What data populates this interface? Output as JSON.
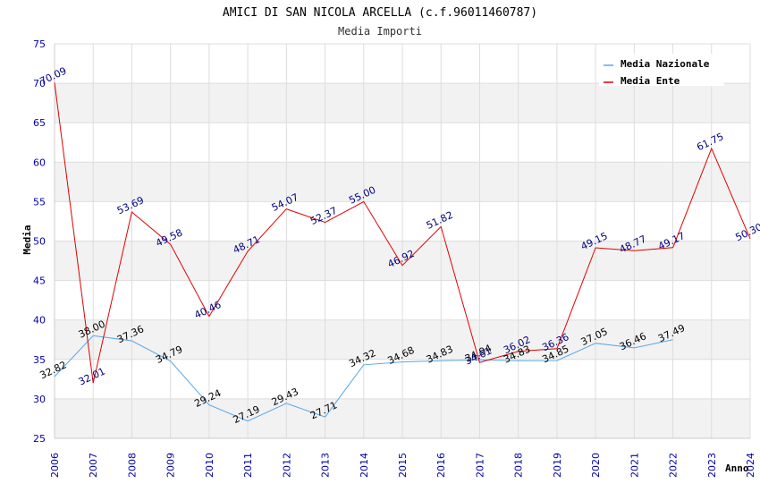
{
  "chart_data": {
    "type": "line",
    "title": "AMICI DI SAN NICOLA ARCELLA (c.f.96011460787)",
    "subtitle": "Media Importi",
    "xlabel": "Anno",
    "ylabel": "Media",
    "ylim": [
      25,
      75
    ],
    "yticks": [
      "25",
      "30",
      "35",
      "40",
      "45",
      "50",
      "55",
      "60",
      "65",
      "70",
      "75"
    ],
    "x": [
      "2006",
      "2007",
      "2008",
      "2009",
      "2010",
      "2011",
      "2012",
      "2013",
      "2014",
      "2015",
      "2016",
      "2017",
      "2018",
      "2019",
      "2020",
      "2021",
      "2022",
      "2023",
      "2024"
    ],
    "grid": true,
    "legend_position": "top-right",
    "series": [
      {
        "name": "Media Nazionale",
        "color": "#5aa7e6",
        "values": [
          32.82,
          38.0,
          37.36,
          34.79,
          29.24,
          27.19,
          29.43,
          27.71,
          34.32,
          34.68,
          34.83,
          34.94,
          34.83,
          34.85,
          37.05,
          36.46,
          37.49,
          null,
          null
        ],
        "labels": [
          "32.82",
          "38.00",
          "37.36",
          "34.79",
          "29.24",
          "27.19",
          "29.43",
          "27.71",
          "34.32",
          "34.68",
          "34.83",
          "34.94",
          "34.83",
          "34.85",
          "37.05",
          "36.46",
          "37.49",
          "",
          ""
        ]
      },
      {
        "name": "Media Ente",
        "color": "#e00000",
        "values": [
          70.09,
          32.01,
          53.69,
          49.58,
          40.46,
          48.71,
          54.07,
          52.37,
          55.0,
          46.92,
          51.82,
          34.61,
          36.02,
          36.36,
          49.15,
          48.77,
          49.17,
          61.75,
          50.3
        ],
        "labels": [
          "70.09",
          "32.01",
          "53.69",
          "49.58",
          "40.46",
          "48.71",
          "54.07",
          "52.37",
          "55.00",
          "46.92",
          "51.82",
          "34.61",
          "36.02",
          "36.36",
          "49.15",
          "48.77",
          "49.17",
          "61.75",
          "50.30"
        ]
      }
    ]
  }
}
